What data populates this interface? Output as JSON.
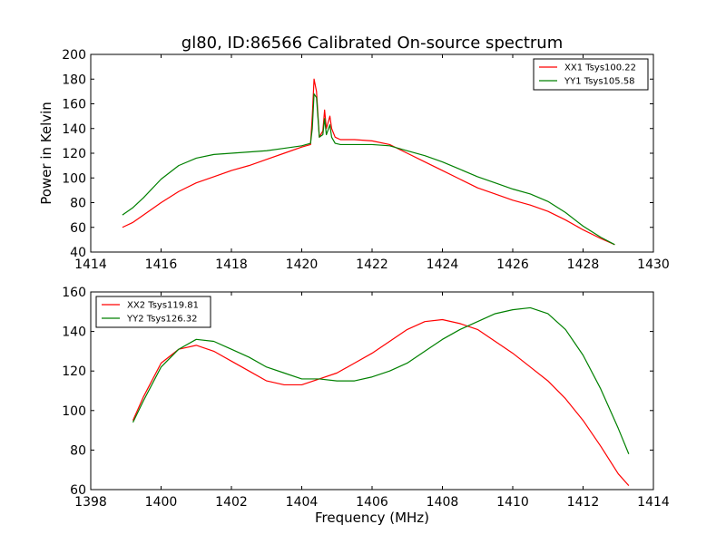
{
  "chart_data": [
    {
      "type": "line",
      "title": "gl80, ID:86566 Calibrated On-source spectrum",
      "xlabel": "",
      "ylabel": "Power in Kelvin",
      "xlim": [
        1414,
        1430
      ],
      "ylim": [
        40,
        200
      ],
      "xticks": [
        1414,
        1416,
        1418,
        1420,
        1422,
        1424,
        1426,
        1428,
        1430
      ],
      "yticks": [
        40,
        60,
        80,
        100,
        120,
        140,
        160,
        180,
        200
      ],
      "legend_position": "top-right",
      "grid": false,
      "series": [
        {
          "name": "XX1 Tsys100.22",
          "color": "#ff0000",
          "points": [
            [
              1414.9,
              60
            ],
            [
              1415.2,
              64
            ],
            [
              1415.5,
              70
            ],
            [
              1416,
              80
            ],
            [
              1416.5,
              89
            ],
            [
              1417,
              96
            ],
            [
              1417.5,
              101
            ],
            [
              1418,
              106
            ],
            [
              1418.5,
              110
            ],
            [
              1419,
              115
            ],
            [
              1419.5,
              120
            ],
            [
              1420,
              125
            ],
            [
              1420.25,
              127
            ],
            [
              1420.3,
              150
            ],
            [
              1420.35,
              180
            ],
            [
              1420.42,
              170
            ],
            [
              1420.5,
              133
            ],
            [
              1420.6,
              138
            ],
            [
              1420.65,
              155
            ],
            [
              1420.7,
              140
            ],
            [
              1420.8,
              150
            ],
            [
              1420.85,
              140
            ],
            [
              1420.95,
              133
            ],
            [
              1421.1,
              131
            ],
            [
              1421.5,
              131
            ],
            [
              1422,
              130
            ],
            [
              1422.5,
              127
            ],
            [
              1423,
              120
            ],
            [
              1423.5,
              113
            ],
            [
              1424,
              106
            ],
            [
              1424.5,
              99
            ],
            [
              1425,
              92
            ],
            [
              1425.5,
              87
            ],
            [
              1426,
              82
            ],
            [
              1426.5,
              78
            ],
            [
              1427,
              73
            ],
            [
              1427.5,
              66
            ],
            [
              1428,
              58
            ],
            [
              1428.5,
              51
            ],
            [
              1428.9,
              46
            ]
          ]
        },
        {
          "name": "YY1 Tsys105.58",
          "color": "#008000",
          "points": [
            [
              1414.9,
              70
            ],
            [
              1415.2,
              76
            ],
            [
              1415.5,
              84
            ],
            [
              1416,
              99
            ],
            [
              1416.5,
              110
            ],
            [
              1417,
              116
            ],
            [
              1417.5,
              119
            ],
            [
              1418,
              120
            ],
            [
              1418.5,
              121
            ],
            [
              1419,
              122
            ],
            [
              1419.5,
              124
            ],
            [
              1420,
              126
            ],
            [
              1420.25,
              128
            ],
            [
              1420.3,
              140
            ],
            [
              1420.35,
              168
            ],
            [
              1420.42,
              165
            ],
            [
              1420.5,
              133
            ],
            [
              1420.6,
              135
            ],
            [
              1420.65,
              148
            ],
            [
              1420.7,
              135
            ],
            [
              1420.8,
              143
            ],
            [
              1420.85,
              133
            ],
            [
              1420.95,
              128
            ],
            [
              1421.1,
              127
            ],
            [
              1421.5,
              127
            ],
            [
              1422,
              127
            ],
            [
              1422.5,
              126
            ],
            [
              1423,
              122
            ],
            [
              1423.5,
              118
            ],
            [
              1424,
              113
            ],
            [
              1424.5,
              107
            ],
            [
              1425,
              101
            ],
            [
              1425.5,
              96
            ],
            [
              1426,
              91
            ],
            [
              1426.5,
              87
            ],
            [
              1427,
              81
            ],
            [
              1427.5,
              72
            ],
            [
              1428,
              61
            ],
            [
              1428.5,
              52
            ],
            [
              1428.9,
              46
            ]
          ]
        }
      ]
    },
    {
      "type": "line",
      "title": "",
      "xlabel": "Frequency (MHz)",
      "ylabel": "",
      "xlim": [
        1398,
        1414
      ],
      "ylim": [
        60,
        160
      ],
      "xticks": [
        1398,
        1400,
        1402,
        1404,
        1406,
        1408,
        1410,
        1412,
        1414
      ],
      "yticks": [
        60,
        80,
        100,
        120,
        140,
        160
      ],
      "legend_position": "top-left",
      "grid": false,
      "series": [
        {
          "name": "XX2 Tsys119.81",
          "color": "#ff0000",
          "points": [
            [
              1399.2,
              95
            ],
            [
              1399.5,
              107
            ],
            [
              1400,
              124
            ],
            [
              1400.5,
              131
            ],
            [
              1401,
              133
            ],
            [
              1401.5,
              130
            ],
            [
              1402,
              125
            ],
            [
              1402.5,
              120
            ],
            [
              1403,
              115
            ],
            [
              1403.5,
              113
            ],
            [
              1404,
              113
            ],
            [
              1404.5,
              116
            ],
            [
              1405,
              119
            ],
            [
              1405.5,
              124
            ],
            [
              1406,
              129
            ],
            [
              1406.5,
              135
            ],
            [
              1407,
              141
            ],
            [
              1407.5,
              145
            ],
            [
              1408,
              146
            ],
            [
              1408.5,
              144
            ],
            [
              1409,
              141
            ],
            [
              1409.5,
              135
            ],
            [
              1410,
              129
            ],
            [
              1410.5,
              122
            ],
            [
              1411,
              115
            ],
            [
              1411.5,
              106
            ],
            [
              1412,
              95
            ],
            [
              1412.5,
              82
            ],
            [
              1413,
              68
            ],
            [
              1413.3,
              62
            ]
          ]
        },
        {
          "name": "YY2 Tsys126.32",
          "color": "#008000",
          "points": [
            [
              1399.2,
              94
            ],
            [
              1399.5,
              105
            ],
            [
              1400,
              122
            ],
            [
              1400.5,
              131
            ],
            [
              1401,
              136
            ],
            [
              1401.5,
              135
            ],
            [
              1402,
              131
            ],
            [
              1402.5,
              127
            ],
            [
              1403,
              122
            ],
            [
              1403.5,
              119
            ],
            [
              1404,
              116
            ],
            [
              1404.5,
              116
            ],
            [
              1405,
              115
            ],
            [
              1405.5,
              115
            ],
            [
              1406,
              117
            ],
            [
              1406.5,
              120
            ],
            [
              1407,
              124
            ],
            [
              1407.5,
              130
            ],
            [
              1408,
              136
            ],
            [
              1408.5,
              141
            ],
            [
              1409,
              145
            ],
            [
              1409.5,
              149
            ],
            [
              1410,
              151
            ],
            [
              1410.5,
              152
            ],
            [
              1411,
              149
            ],
            [
              1411.5,
              141
            ],
            [
              1412,
              128
            ],
            [
              1412.5,
              111
            ],
            [
              1413,
              91
            ],
            [
              1413.3,
              78
            ]
          ]
        }
      ]
    }
  ]
}
